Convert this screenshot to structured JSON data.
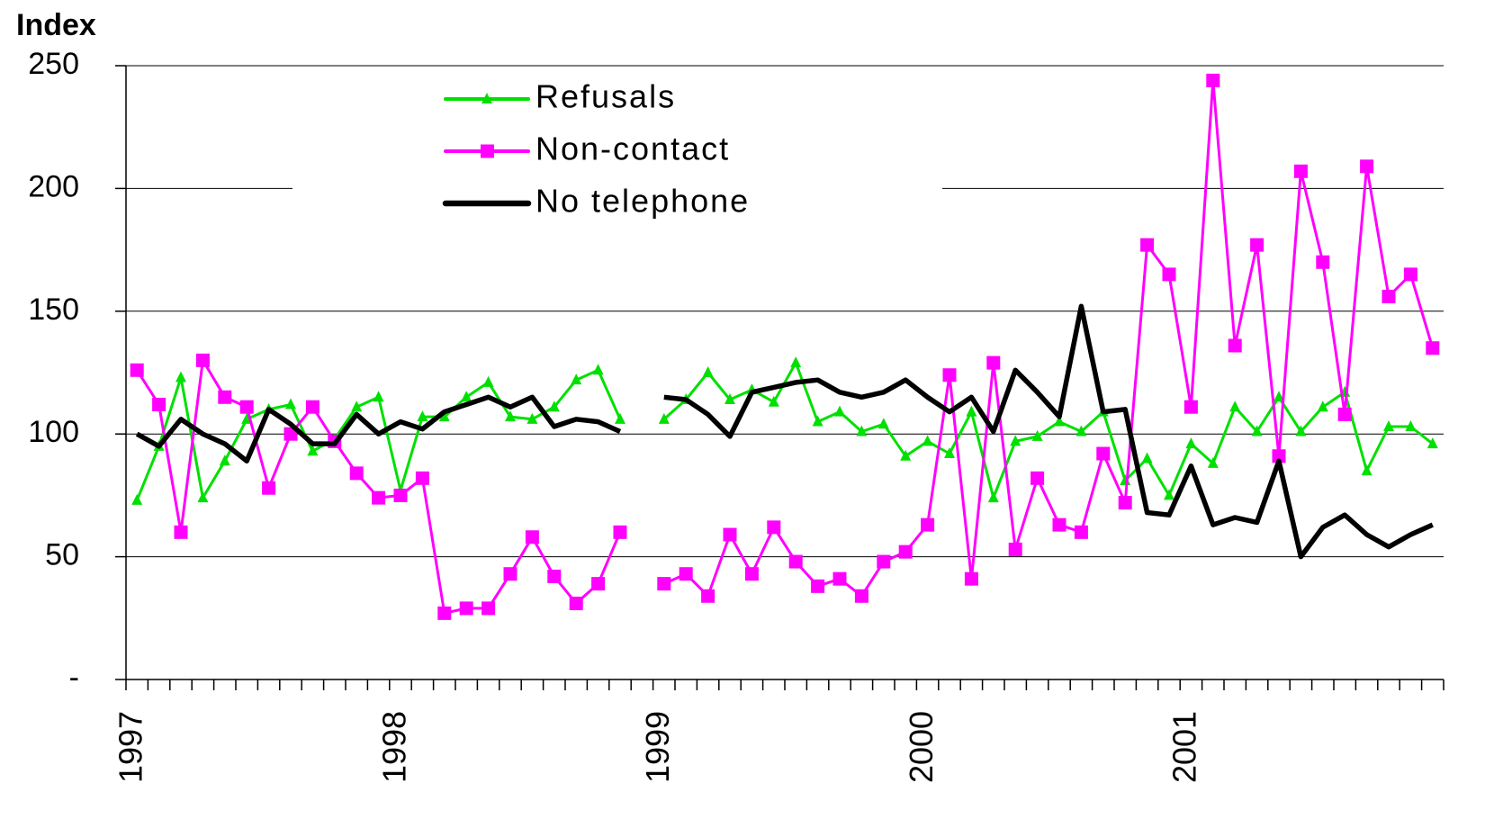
{
  "chart_data": {
    "type": "line",
    "y_label": "Index",
    "categories": [
      "1997",
      null,
      null,
      null,
      null,
      null,
      null,
      null,
      null,
      null,
      null,
      null,
      "1998",
      null,
      null,
      null,
      null,
      null,
      null,
      null,
      null,
      null,
      null,
      null,
      "1999",
      null,
      null,
      null,
      null,
      null,
      null,
      null,
      null,
      null,
      null,
      null,
      "2000",
      null,
      null,
      null,
      null,
      null,
      null,
      null,
      null,
      null,
      null,
      null,
      "2001",
      null,
      null,
      null,
      null,
      null,
      null,
      null,
      null,
      null,
      null,
      null
    ],
    "series": [
      {
        "name": "Refusals",
        "color": "#00e000",
        "marker": "triangle",
        "values": [
          73,
          95,
          123,
          74,
          89,
          106,
          110,
          112,
          93,
          98,
          111,
          115,
          77,
          107,
          107,
          115,
          121,
          107,
          106,
          111,
          122,
          126,
          106,
          null,
          106,
          114,
          125,
          114,
          118,
          113,
          129,
          105,
          109,
          101,
          104,
          91,
          97,
          92,
          109,
          74,
          97,
          99,
          105,
          101,
          109,
          81,
          90,
          75,
          96,
          88,
          111,
          101,
          115,
          101,
          111,
          117,
          85,
          103,
          103,
          96
        ]
      },
      {
        "name": "Non-contact",
        "color": "#ff00ff",
        "marker": "square",
        "values": [
          126,
          112,
          60,
          130,
          115,
          111,
          78,
          100,
          111,
          97,
          84,
          74,
          75,
          82,
          27,
          29,
          29,
          43,
          58,
          42,
          31,
          39,
          60,
          null,
          39,
          43,
          34,
          59,
          43,
          62,
          48,
          38,
          41,
          34,
          48,
          52,
          63,
          124,
          41,
          129,
          53,
          82,
          63,
          60,
          92,
          72,
          177,
          165,
          111,
          244,
          136,
          177,
          91,
          207,
          170,
          108,
          209,
          156,
          165,
          135
        ]
      },
      {
        "name": "No telephone",
        "color": "#000000",
        "marker": "none",
        "values": [
          100,
          95,
          106,
          100,
          96,
          89,
          110,
          104,
          96,
          96,
          108,
          100,
          105,
          102,
          109,
          112,
          115,
          111,
          115,
          103,
          106,
          105,
          101,
          null,
          115,
          114,
          108,
          99,
          117,
          119,
          121,
          122,
          117,
          115,
          117,
          122,
          115,
          109,
          115,
          101,
          126,
          117,
          107,
          152,
          109,
          110,
          68,
          67,
          87,
          63,
          66,
          64,
          89,
          50,
          62,
          67,
          59,
          54,
          59,
          63
        ]
      }
    ],
    "ylim": [
      0,
      250
    ],
    "yticks": [
      {
        "value": 0,
        "label": "-"
      },
      50,
      100,
      150,
      200,
      250
    ],
    "grid": true,
    "legend": "upper center"
  }
}
